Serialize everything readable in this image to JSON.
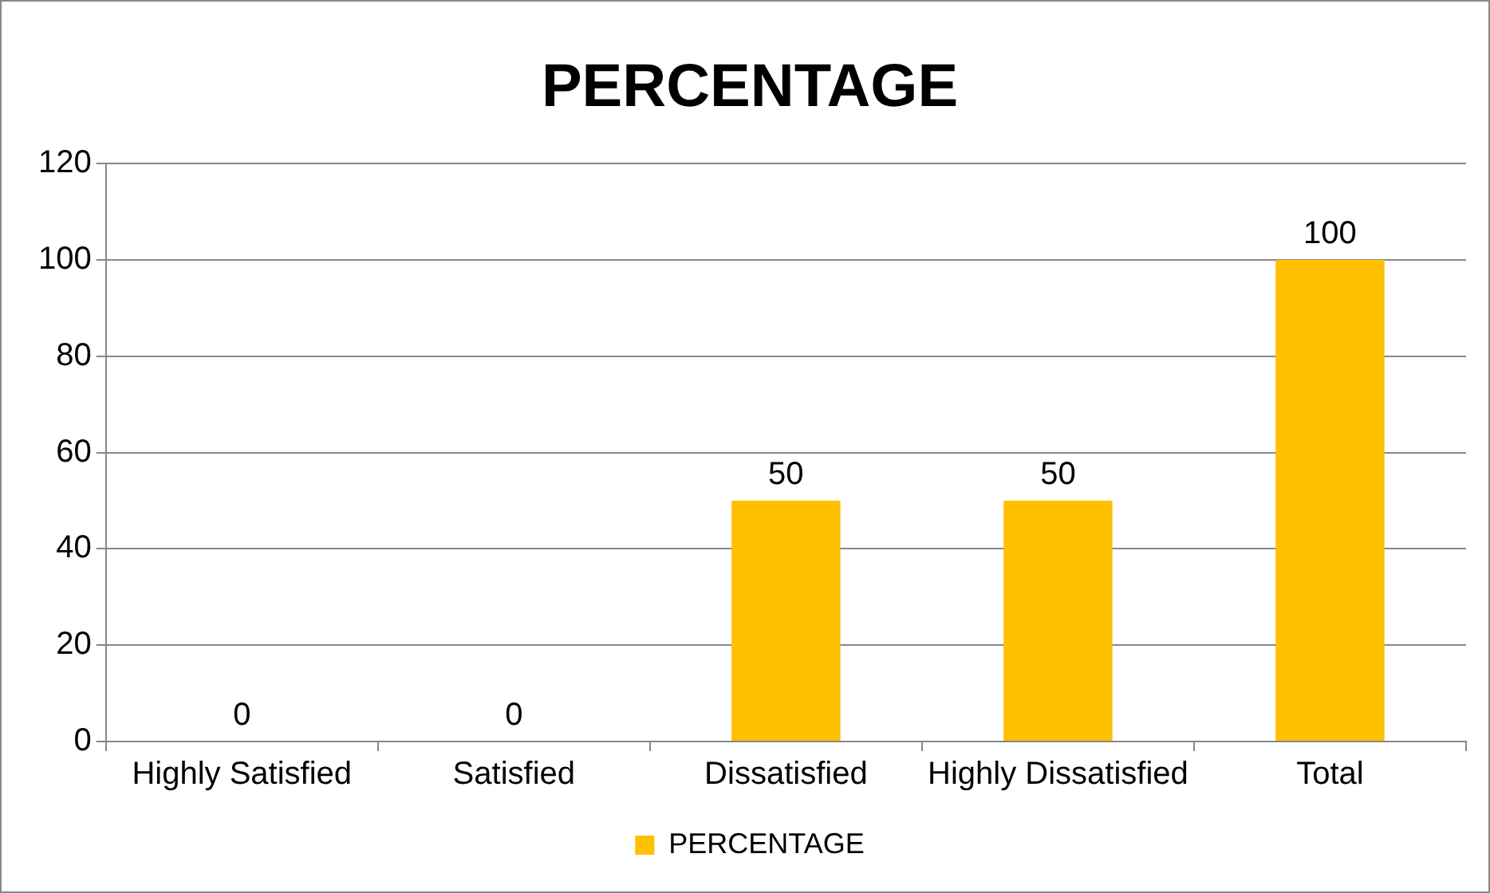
{
  "chart_data": {
    "type": "bar",
    "title": "PERCENTAGE",
    "categories": [
      "Highly Satisfied",
      "Satisfied",
      "Dissatisfied",
      "Highly Dissatisfied",
      "Total"
    ],
    "series": [
      {
        "name": "PERCENTAGE",
        "color": "#ffc000",
        "values": [
          0,
          0,
          50,
          50,
          100
        ]
      }
    ],
    "ylim": [
      0,
      120
    ],
    "yticks": [
      0,
      20,
      40,
      60,
      80,
      100,
      120
    ],
    "grid": "y",
    "legend": "bottom",
    "data_labels": true
  }
}
